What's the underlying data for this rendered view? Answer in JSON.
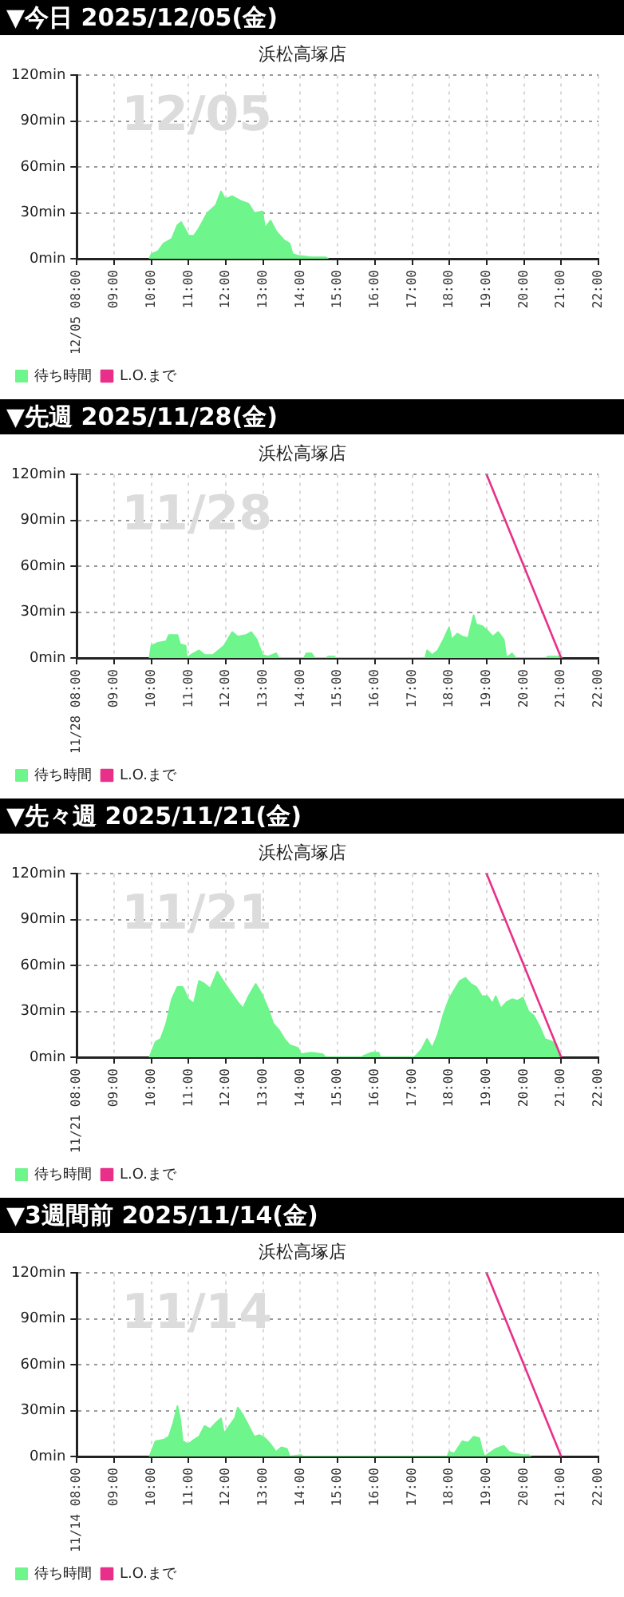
{
  "chart_data": [
    {
      "type": "area",
      "title": "▼今日 2025/12/05(金)",
      "subtitle": "浜松高塚店",
      "annotations": [
        "12/05"
      ],
      "xlim": [
        8,
        22
      ],
      "xticks": [
        {
          "value": 8,
          "label": "12/05 08:00"
        },
        {
          "value": 9,
          "label": "09:00"
        },
        {
          "value": 10,
          "label": "10:00"
        },
        {
          "value": 11,
          "label": "11:00"
        },
        {
          "value": 12,
          "label": "12:00"
        },
        {
          "value": 13,
          "label": "13:00"
        },
        {
          "value": 14,
          "label": "14:00"
        },
        {
          "value": 15,
          "label": "15:00"
        },
        {
          "value": 16,
          "label": "16:00"
        },
        {
          "value": 17,
          "label": "17:00"
        },
        {
          "value": 18,
          "label": "18:00"
        },
        {
          "value": 19,
          "label": "19:00"
        },
        {
          "value": 20,
          "label": "20:00"
        },
        {
          "value": 21,
          "label": "21:00"
        },
        {
          "value": 22,
          "label": "22:00"
        }
      ],
      "ylim": [
        0,
        120
      ],
      "yticks": [
        {
          "value": 0,
          "label": "0min"
        },
        {
          "value": 30,
          "label": "30min"
        },
        {
          "value": 60,
          "label": "60min"
        },
        {
          "value": 90,
          "label": "90min"
        },
        {
          "value": 120,
          "label": "120min"
        }
      ],
      "grid": true,
      "legend": "bottom left",
      "marker": "none",
      "series": [
        {
          "name": "待ち時間",
          "color": "#6ef58c",
          "x": [
            9.95,
            10.0,
            10.18,
            10.33,
            10.55,
            10.7,
            10.8,
            10.89,
            11.0,
            11.14,
            11.28,
            11.5,
            11.73,
            11.87,
            11.98,
            12.17,
            12.39,
            12.61,
            12.76,
            12.98,
            13.05,
            13.2,
            13.35,
            13.57,
            13.71,
            13.79,
            13.94,
            14.3,
            14.67,
            14.75
          ],
          "values": [
            0,
            3,
            5,
            10,
            13,
            22,
            24,
            20,
            15,
            15,
            20,
            30,
            35,
            44,
            39,
            41,
            38,
            36,
            30,
            31,
            20,
            25,
            18,
            12,
            10,
            3,
            2,
            1,
            1,
            0
          ]
        },
        {
          "name": "L.O.まで",
          "type": "line",
          "color": "#e8308a"
        }
      ]
    },
    {
      "type": "area",
      "title": "▼先週 2025/11/28(金)",
      "subtitle": "浜松高塚店",
      "annotations": [
        "11/28"
      ],
      "xlim": [
        8,
        22
      ],
      "xticks": [
        {
          "value": 8,
          "label": "11/28 08:00"
        },
        {
          "value": 9,
          "label": "09:00"
        },
        {
          "value": 10,
          "label": "10:00"
        },
        {
          "value": 11,
          "label": "11:00"
        },
        {
          "value": 12,
          "label": "12:00"
        },
        {
          "value": 13,
          "label": "13:00"
        },
        {
          "value": 14,
          "label": "14:00"
        },
        {
          "value": 15,
          "label": "15:00"
        },
        {
          "value": 16,
          "label": "16:00"
        },
        {
          "value": 17,
          "label": "17:00"
        },
        {
          "value": 18,
          "label": "18:00"
        },
        {
          "value": 19,
          "label": "19:00"
        },
        {
          "value": 20,
          "label": "20:00"
        },
        {
          "value": 21,
          "label": "21:00"
        },
        {
          "value": 22,
          "label": "22:00"
        }
      ],
      "ylim": [
        0,
        120
      ],
      "yticks": [
        {
          "value": 0,
          "label": "0min"
        },
        {
          "value": 30,
          "label": "30min"
        },
        {
          "value": 60,
          "label": "60min"
        },
        {
          "value": 90,
          "label": "90min"
        },
        {
          "value": 120,
          "label": "120min"
        }
      ],
      "grid": true,
      "legend": "bottom left",
      "marker": "none",
      "series": [
        {
          "name": "待ち時間",
          "color": "#6ef58c",
          "x": [
            9.95,
            10.0,
            10.18,
            10.4,
            10.47,
            10.7,
            10.77,
            10.92,
            10.95,
            11.06,
            11.28,
            11.43,
            11.65,
            11.8,
            11.95,
            12.17,
            12.32,
            12.54,
            12.68,
            12.83,
            12.98,
            13.13,
            13.35,
            13.42,
            14.1,
            14.16,
            14.3,
            14.38,
            14.7,
            14.75,
            14.9,
            14.92,
            17.35,
            17.4,
            17.54,
            17.69,
            17.84,
            17.99,
            18.06,
            18.21,
            18.35,
            18.5,
            18.65,
            18.72,
            18.87,
            19.02,
            19.16,
            19.31,
            19.46,
            19.53,
            19.68,
            19.78,
            20.6,
            20.64,
            21.0,
            21.02
          ],
          "values": [
            0,
            8,
            10,
            11,
            15,
            15,
            9,
            8,
            0,
            2,
            5,
            2,
            2,
            5,
            8,
            17,
            14,
            15,
            17,
            12,
            2,
            1,
            3,
            0,
            0,
            3,
            3,
            0,
            0,
            1,
            1,
            0,
            0,
            5,
            2,
            5,
            12,
            20,
            12,
            16,
            14,
            13,
            28,
            22,
            21,
            18,
            14,
            17,
            12,
            0,
            3,
            0,
            0,
            1,
            1,
            0
          ]
        },
        {
          "name": "L.O.まで",
          "type": "line",
          "color": "#e8308a",
          "x": [
            19,
            21
          ],
          "values": [
            120,
            0
          ]
        }
      ]
    },
    {
      "type": "area",
      "title": "▼先々週 2025/11/21(金)",
      "subtitle": "浜松高塚店",
      "annotations": [
        "11/21"
      ],
      "xlim": [
        8,
        22
      ],
      "xticks": [
        {
          "value": 8,
          "label": "11/21 08:00"
        },
        {
          "value": 9,
          "label": "09:00"
        },
        {
          "value": 10,
          "label": "10:00"
        },
        {
          "value": 11,
          "label": "11:00"
        },
        {
          "value": 12,
          "label": "12:00"
        },
        {
          "value": 13,
          "label": "13:00"
        },
        {
          "value": 14,
          "label": "14:00"
        },
        {
          "value": 15,
          "label": "15:00"
        },
        {
          "value": 16,
          "label": "16:00"
        },
        {
          "value": 17,
          "label": "17:00"
        },
        {
          "value": 18,
          "label": "18:00"
        },
        {
          "value": 19,
          "label": "19:00"
        },
        {
          "value": 20,
          "label": "20:00"
        },
        {
          "value": 21,
          "label": "21:00"
        },
        {
          "value": 22,
          "label": "22:00"
        }
      ],
      "ylim": [
        0,
        120
      ],
      "yticks": [
        {
          "value": 0,
          "label": "0min"
        },
        {
          "value": 30,
          "label": "30min"
        },
        {
          "value": 60,
          "label": "60min"
        },
        {
          "value": 90,
          "label": "90min"
        },
        {
          "value": 120,
          "label": "120min"
        }
      ],
      "grid": true,
      "legend": "bottom left",
      "marker": "none",
      "series": [
        {
          "name": "待ち時間",
          "color": "#6ef58c",
          "x": [
            9.95,
            10.0,
            10.11,
            10.25,
            10.4,
            10.55,
            10.7,
            10.84,
            10.99,
            11.14,
            11.28,
            11.43,
            11.58,
            11.77,
            11.87,
            12.09,
            12.32,
            12.46,
            12.61,
            12.8,
            12.95,
            13.13,
            13.27,
            13.42,
            13.57,
            13.71,
            13.94,
            14.01,
            14.3,
            14.6,
            14.67,
            15.65,
            15.7,
            15.92,
            16.1,
            16.14,
            17.05,
            17.1,
            17.25,
            17.4,
            17.54,
            17.69,
            17.84,
            17.99,
            18.13,
            18.28,
            18.43,
            18.57,
            18.72,
            18.87,
            19.02,
            19.16,
            19.24,
            19.38,
            19.53,
            19.68,
            19.83,
            19.97,
            20.12,
            20.27,
            20.42,
            20.56,
            20.78,
            20.93,
            21.0
          ],
          "values": [
            0,
            3,
            10,
            12,
            22,
            38,
            46,
            46,
            38,
            35,
            50,
            48,
            45,
            56,
            52,
            44,
            36,
            32,
            40,
            48,
            42,
            32,
            22,
            18,
            12,
            8,
            6,
            2,
            3,
            2,
            0,
            0,
            1,
            3,
            3,
            0,
            0,
            1,
            5,
            12,
            6,
            15,
            28,
            38,
            44,
            50,
            52,
            48,
            46,
            40,
            40,
            35,
            40,
            32,
            36,
            38,
            37,
            39,
            30,
            27,
            20,
            12,
            10,
            2,
            0
          ]
        },
        {
          "name": "L.O.まで",
          "type": "line",
          "color": "#e8308a",
          "x": [
            19,
            21
          ],
          "values": [
            120,
            0
          ]
        }
      ]
    },
    {
      "type": "area",
      "title": "▼3週間前 2025/11/14(金)",
      "subtitle": "浜松高塚店",
      "annotations": [
        "11/14"
      ],
      "xlim": [
        8,
        22
      ],
      "xticks": [
        {
          "value": 8,
          "label": "11/14 08:00"
        },
        {
          "value": 9,
          "label": "09:00"
        },
        {
          "value": 10,
          "label": "10:00"
        },
        {
          "value": 11,
          "label": "11:00"
        },
        {
          "value": 12,
          "label": "12:00"
        },
        {
          "value": 13,
          "label": "13:00"
        },
        {
          "value": 14,
          "label": "14:00"
        },
        {
          "value": 15,
          "label": "15:00"
        },
        {
          "value": 16,
          "label": "16:00"
        },
        {
          "value": 17,
          "label": "17:00"
        },
        {
          "value": 18,
          "label": "18:00"
        },
        {
          "value": 19,
          "label": "19:00"
        },
        {
          "value": 20,
          "label": "20:00"
        },
        {
          "value": 21,
          "label": "21:00"
        },
        {
          "value": 22,
          "label": "22:00"
        }
      ],
      "ylim": [
        0,
        120
      ],
      "yticks": [
        {
          "value": 0,
          "label": "0min"
        },
        {
          "value": 30,
          "label": "30min"
        },
        {
          "value": 60,
          "label": "60min"
        },
        {
          "value": 90,
          "label": "90min"
        },
        {
          "value": 120,
          "label": "120min"
        }
      ],
      "grid": true,
      "legend": "bottom left",
      "marker": "none",
      "series": [
        {
          "name": "待ち時間",
          "color": "#6ef58c",
          "x": [
            9.95,
            10.0,
            10.11,
            10.33,
            10.47,
            10.59,
            10.7,
            10.77,
            10.84,
            10.99,
            11.14,
            11.28,
            11.43,
            11.58,
            11.73,
            11.87,
            11.95,
            12.09,
            12.24,
            12.32,
            12.46,
            12.61,
            12.76,
            12.9,
            13.05,
            13.2,
            13.35,
            13.49,
            13.64,
            13.71,
            14.01,
            14.08,
            17.95,
            17.99,
            18.13,
            18.35,
            18.5,
            18.65,
            18.8,
            18.87,
            18.94,
            19.24,
            19.46,
            19.6,
            19.75,
            19.97,
            20.12,
            20.19
          ],
          "values": [
            0,
            3,
            10,
            11,
            13,
            22,
            33,
            25,
            10,
            8,
            11,
            13,
            20,
            18,
            22,
            25,
            15,
            20,
            25,
            32,
            27,
            20,
            13,
            14,
            12,
            8,
            3,
            6,
            5,
            0,
            1,
            0,
            0,
            3,
            2,
            10,
            9,
            13,
            12,
            5,
            0,
            5,
            7,
            3,
            2,
            1,
            1,
            0
          ]
        },
        {
          "name": "L.O.まで",
          "type": "line",
          "color": "#e8308a",
          "x": [
            19,
            21
          ],
          "values": [
            120,
            0
          ]
        }
      ]
    }
  ]
}
